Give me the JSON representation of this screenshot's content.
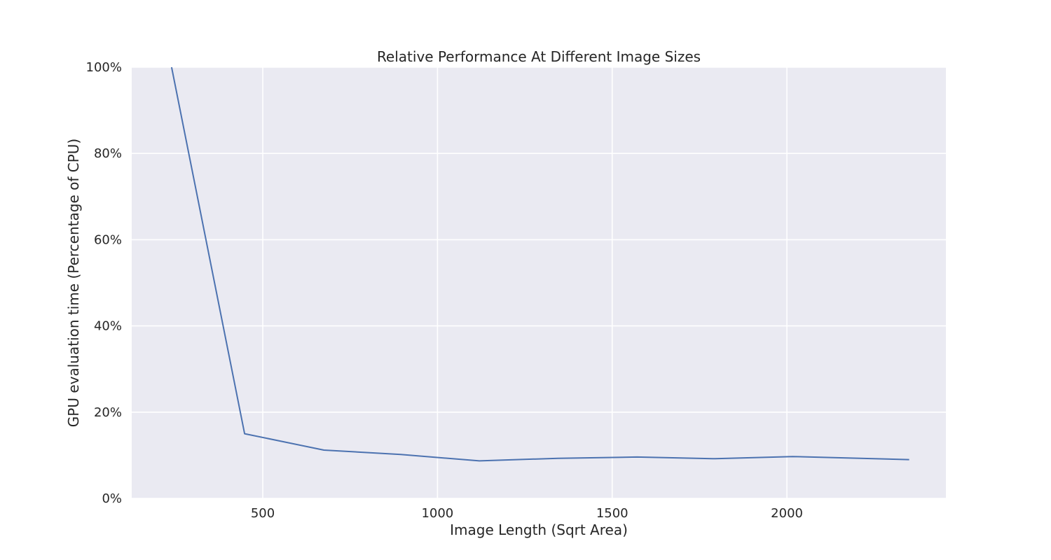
{
  "chart_data": {
    "type": "line",
    "title": "Relative Performance At Different Image Sizes",
    "xlabel": "Image Length (Sqrt Area)",
    "ylabel": "GPU evaluation time (Percentage of CPU)",
    "xlim": [
      125,
      2455
    ],
    "ylim": [
      0,
      1
    ],
    "xticks": [
      500,
      1000,
      1500,
      2000
    ],
    "xtick_labels": [
      "500",
      "1000",
      "1500",
      "2000"
    ],
    "yticks": [
      0,
      0.2,
      0.4,
      0.6,
      0.8,
      1.0
    ],
    "ytick_labels": [
      "0%",
      "20%",
      "40%",
      "60%",
      "80%",
      "100%"
    ],
    "grid": true,
    "style": "seaborn darkgrid",
    "series": [
      {
        "color": "#4c72b0",
        "x": [
          239,
          448,
          675,
          895,
          1120,
          1345,
          1571,
          1795,
          2016,
          2350
        ],
        "y": [
          1.0,
          0.15,
          0.112,
          0.102,
          0.087,
          0.093,
          0.096,
          0.092,
          0.097,
          0.09
        ]
      }
    ],
    "colors": {
      "plot_background": "#eaeaf2",
      "grid": "#ffffff",
      "text": "#262626"
    }
  }
}
